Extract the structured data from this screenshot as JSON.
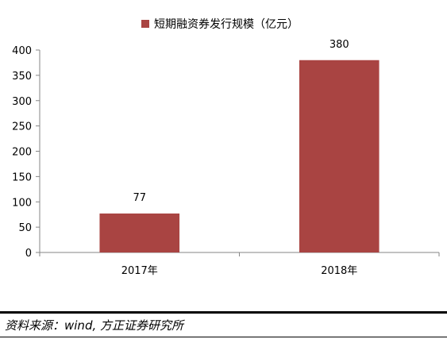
{
  "chart_data": {
    "type": "bar",
    "legend": "短期融资券发行规模（亿元）",
    "legend_color": "#A94442",
    "categories": [
      "2017年",
      "2018年"
    ],
    "values": [
      77,
      380
    ],
    "data_labels": [
      "77",
      "380"
    ],
    "ylim": [
      0,
      400
    ],
    "yticks": [
      0,
      50,
      100,
      150,
      200,
      250,
      300,
      350,
      400
    ],
    "grid": false,
    "legend_position": "top-center"
  },
  "source": "资料来源：wind, 方正证券研究所"
}
